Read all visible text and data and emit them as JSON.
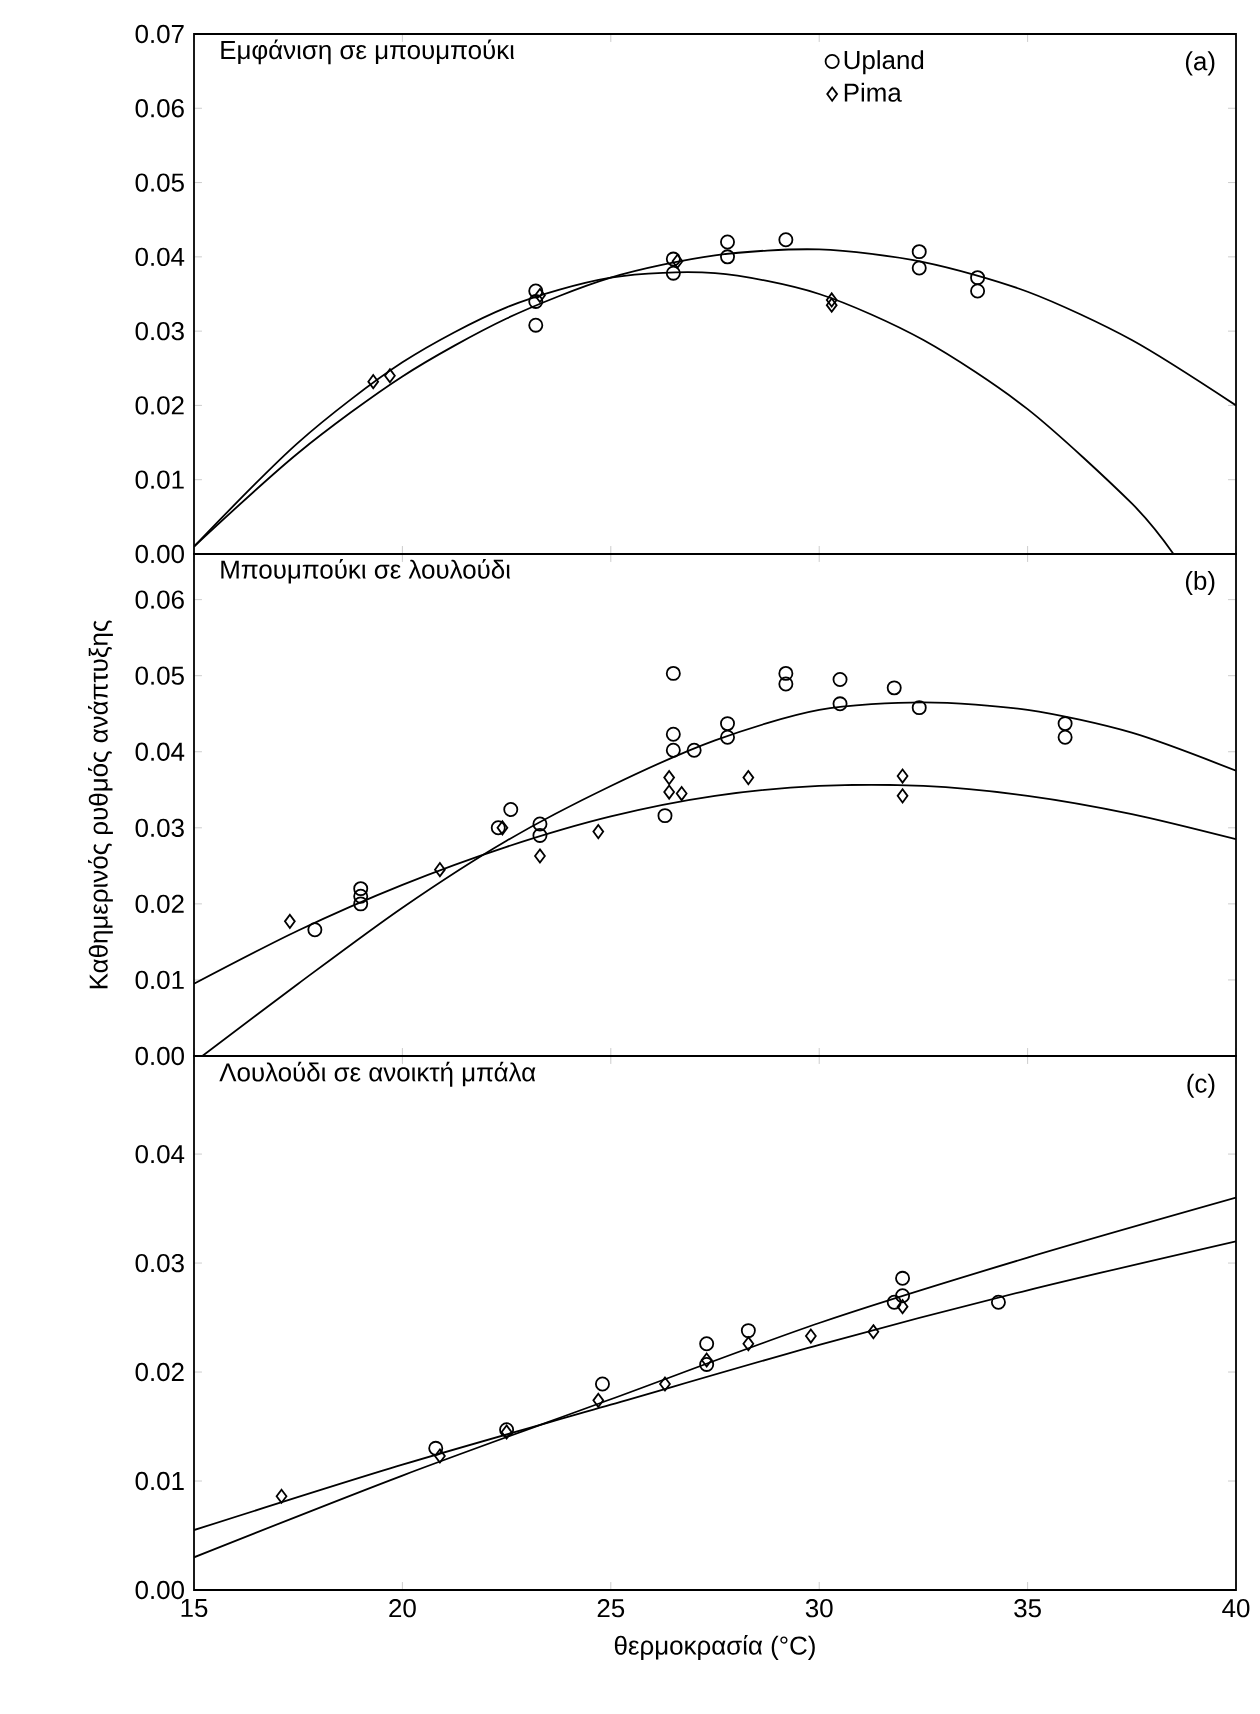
{
  "chart_data": [
    {
      "type": "scatter",
      "title": "Εμφάνιση σε μπουμπούκι",
      "annotations": [
        "(a)"
      ],
      "xlim": [
        15,
        40
      ],
      "xticks": [
        15,
        20,
        25,
        30,
        35,
        40
      ],
      "ylim": [
        0,
        0.07
      ],
      "yticks": [
        {
          "value": 0,
          "label": "0.00"
        },
        {
          "value": 0.01,
          "label": "0.01"
        },
        {
          "value": 0.02,
          "label": "0.02"
        },
        {
          "value": 0.03,
          "label": "0.03"
        },
        {
          "value": 0.04,
          "label": "0.04"
        },
        {
          "value": 0.05,
          "label": "0.05"
        },
        {
          "value": 0.06,
          "label": "0.06"
        },
        {
          "value": 0.07,
          "label": "0.07"
        }
      ],
      "tick_labels": "y",
      "legend": "top right",
      "series": [
        {
          "name": "Upland",
          "color": "#000000",
          "marker": "circle",
          "x": [
            23.2,
            23.2,
            23.2,
            26.5,
            26.5,
            27.8,
            27.8,
            29.2,
            32.4,
            32.4,
            33.8,
            33.8
          ],
          "values": [
            0.0308,
            0.034,
            0.0354,
            0.0378,
            0.0397,
            0.04,
            0.042,
            0.0423,
            0.0407,
            0.0385,
            0.0372,
            0.0354
          ]
        },
        {
          "name": "Pima",
          "color": "#000000",
          "marker": "diamond",
          "x": [
            19.3,
            19.7,
            23.3,
            26.6,
            30.3,
            30.3
          ],
          "values": [
            0.0232,
            0.024,
            0.0348,
            0.0394,
            0.0342,
            0.0335
          ]
        },
        {
          "type": "line",
          "color": "#000000",
          "x": [
            15,
            17.5,
            20,
            22.5,
            25,
            27.5,
            30,
            32.5,
            35,
            37.5,
            40
          ],
          "values": [
            0.001,
            0.0136,
            0.0239,
            0.0317,
            0.0372,
            0.0402,
            0.041,
            0.0393,
            0.0353,
            0.0288,
            0.02
          ]
        },
        {
          "type": "line",
          "color": "#000000",
          "x": [
            15,
            17.5,
            20,
            22.5,
            25,
            27.5,
            30,
            32.5,
            35,
            37.5,
            38.5
          ],
          "values": [
            0.001,
            0.015,
            0.0258,
            0.0332,
            0.0372,
            0.0378,
            0.035,
            0.0288,
            0.0195,
            0.0068,
            0
          ]
        }
      ]
    },
    {
      "type": "scatter",
      "title": "Μπουμπούκι σε λουλούδι",
      "ylabel": "Καθημερινός ρυθμός ανάπτυξης",
      "annotations": [
        "(b)"
      ],
      "xlim": [
        15,
        40
      ],
      "xticks": [
        15,
        20,
        25,
        30,
        35,
        40
      ],
      "ylim": [
        0,
        0.066
      ],
      "yticks": [
        {
          "value": 0,
          "label": "0.00"
        },
        {
          "value": 0.01,
          "label": "0.01"
        },
        {
          "value": 0.02,
          "label": "0.02"
        },
        {
          "value": 0.03,
          "label": "0.03"
        },
        {
          "value": 0.04,
          "label": "0.04"
        },
        {
          "value": 0.05,
          "label": "0.05"
        },
        {
          "value": 0.06,
          "label": "0.06"
        }
      ],
      "tick_labels": "y",
      "series": [
        {
          "color": "#000000",
          "marker": "circle",
          "x": [
            17.9,
            19.0,
            19.0,
            19.0,
            22.6,
            22.3,
            23.3,
            23.3,
            26.5,
            26.5,
            26.5,
            27.0,
            26.3,
            27.8,
            27.8,
            29.2,
            29.2,
            30.5,
            30.5,
            31.8,
            32.4,
            35.9,
            35.9
          ],
          "values": [
            0.0166,
            0.022,
            0.021,
            0.02,
            0.0324,
            0.03,
            0.0305,
            0.029,
            0.0503,
            0.0423,
            0.0402,
            0.0402,
            0.0316,
            0.0437,
            0.0419,
            0.0503,
            0.0489,
            0.0495,
            0.0463,
            0.0484,
            0.0458,
            0.0437,
            0.0419
          ]
        },
        {
          "color": "#000000",
          "marker": "diamond",
          "x": [
            17.3,
            20.9,
            22.4,
            23.3,
            24.7,
            26.4,
            26.4,
            26.7,
            28.3,
            32.0,
            32.0
          ],
          "values": [
            0.0177,
            0.0245,
            0.03,
            0.0263,
            0.0295,
            0.0366,
            0.0347,
            0.0345,
            0.0366,
            0.0368,
            0.0342
          ]
        },
        {
          "type": "line",
          "color": "#000000",
          "x": [
            15.2,
            17.5,
            20,
            22.5,
            25,
            27.5,
            30,
            32.5,
            35,
            37.5,
            40
          ],
          "values": [
            0,
            0.0095,
            0.0195,
            0.0283,
            0.0355,
            0.0415,
            0.0455,
            0.0465,
            0.0455,
            0.0425,
            0.0375
          ]
        },
        {
          "type": "line",
          "color": "#000000",
          "x": [
            15,
            17.5,
            20,
            22.5,
            25,
            27.5,
            30,
            32.5,
            35,
            37.5,
            40
          ],
          "values": [
            0.0095,
            0.0165,
            0.0225,
            0.0275,
            0.0315,
            0.0342,
            0.0355,
            0.0355,
            0.0342,
            0.0318,
            0.0285
          ]
        }
      ]
    },
    {
      "type": "scatter",
      "title": "Λουλούδι σε ανοικτή μπάλα",
      "xlabel": "θερμοκρασία (°C)",
      "annotations": [
        "(c)"
      ],
      "xlim": [
        15,
        40
      ],
      "xticks": [
        15,
        20,
        25,
        30,
        35,
        40
      ],
      "ylim": [
        0,
        0.049
      ],
      "yticks": [
        {
          "value": 0,
          "label": "0.00"
        },
        {
          "value": 0.01,
          "label": "0.01"
        },
        {
          "value": 0.02,
          "label": "0.02"
        },
        {
          "value": 0.03,
          "label": "0.03"
        },
        {
          "value": 0.04,
          "label": "0.04"
        }
      ],
      "series": [
        {
          "color": "#000000",
          "marker": "circle",
          "x": [
            20.8,
            22.5,
            24.8,
            27.3,
            27.3,
            28.3,
            31.8,
            32.0,
            32.0,
            34.3
          ],
          "values": [
            0.013,
            0.0147,
            0.0189,
            0.0226,
            0.0207,
            0.0238,
            0.0264,
            0.0286,
            0.027,
            0.0264
          ]
        },
        {
          "color": "#000000",
          "marker": "diamond",
          "x": [
            17.1,
            20.9,
            22.5,
            24.7,
            26.3,
            27.3,
            28.3,
            29.8,
            31.3,
            32.0
          ],
          "values": [
            0.0086,
            0.0123,
            0.0145,
            0.0174,
            0.0189,
            0.0211,
            0.0226,
            0.0233,
            0.0237,
            0.026
          ]
        },
        {
          "type": "line",
          "color": "#000000",
          "x": [
            15,
            20,
            25,
            30,
            35,
            40
          ],
          "values": [
            0.003,
            0.0105,
            0.0175,
            0.0245,
            0.0305,
            0.036
          ]
        },
        {
          "type": "line",
          "color": "#000000",
          "x": [
            15,
            20,
            25,
            30,
            35,
            40
          ],
          "values": [
            0.0055,
            0.0115,
            0.017,
            0.0225,
            0.0275,
            0.032
          ]
        }
      ]
    }
  ]
}
